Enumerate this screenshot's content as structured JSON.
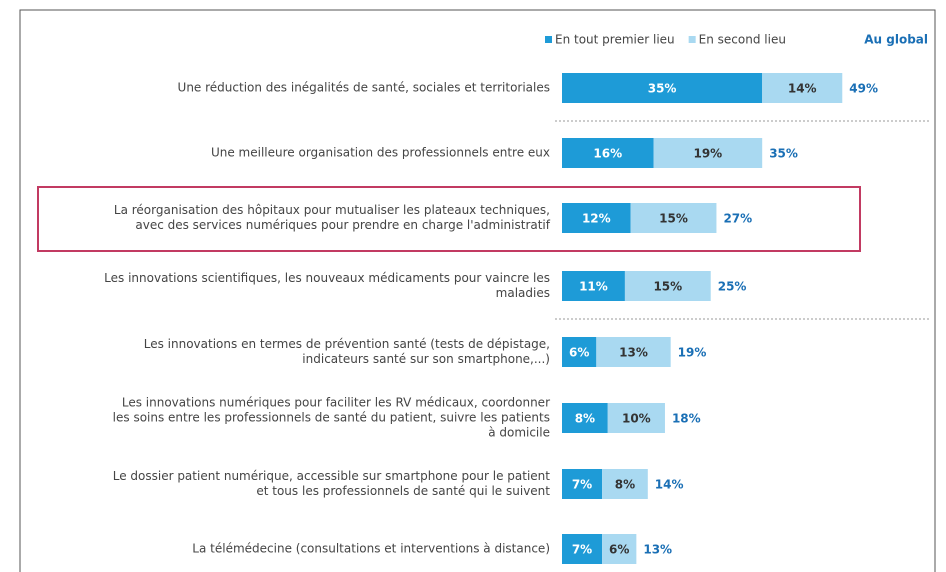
{
  "chart_data": {
    "type": "stacked_bar_horizontal",
    "categories": [
      "Une réduction des inégalités de santé, sociales et territoriales",
      "Une meilleure organisation des professionnels entre eux",
      "La réorganisation des hôpitaux pour mutualiser les plateaux techniques,\navec des services numériques pour prendre en charge l'administratif",
      "Les innovations scientifiques, les nouveaux médicaments pour vaincre les\nmaladies",
      "Les innovations en termes de prévention santé (tests de dépistage,\nindicateurs santé sur son smartphone,...)",
      "Les innovations numériques pour faciliter les RV médicaux, coordonner\nles soins entre les professionnels de santé du patient, suivre les patients\nà domicile",
      "Le dossier patient numérique, accessible sur smartphone pour le patient\net tous les professionnels de santé qui le suivent",
      "La télémédecine (consultations et interventions à distance)"
    ],
    "series": [
      {
        "name": "En tout premier lieu",
        "color": "#1e9bd7",
        "values": [
          35,
          16,
          12,
          11,
          6,
          8,
          7,
          7
        ],
        "value_labels": [
          "35%",
          "16%",
          "12%",
          "11%",
          "6%",
          "8%",
          "7%",
          "7%"
        ]
      },
      {
        "name": "En second lieu",
        "color": "#a9d9f1",
        "values": [
          14,
          19,
          15,
          15,
          13,
          10,
          8,
          6
        ],
        "value_labels": [
          "14%",
          "19%",
          "15%",
          "15%",
          "13%",
          "10%",
          "8%",
          "6%"
        ]
      }
    ],
    "totals": {
      "name": "Au global",
      "color": "#1a6fb5",
      "values": [
        49,
        35,
        27,
        25,
        19,
        18,
        14,
        13
      ],
      "value_labels": [
        "49%",
        "35%",
        "27%",
        "25%",
        "19%",
        "18%",
        "14%",
        "13%"
      ]
    },
    "legend": "top-right"
  }
}
